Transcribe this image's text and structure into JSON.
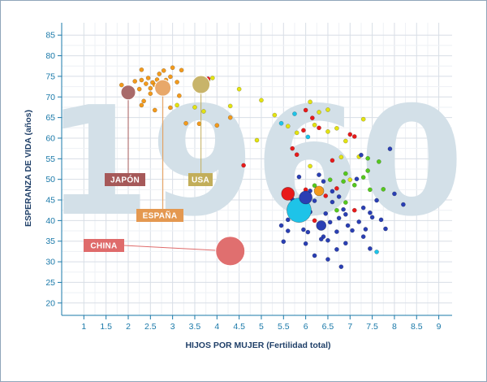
{
  "chart_data": {
    "type": "scatter",
    "title": "",
    "year_label": "1960",
    "xlabel": "HIJOS POR MUJER (Fertilidad total)",
    "ylabel": "ESPERANZA DE VIDA (años)",
    "xlim": [
      0.5,
      9.3
    ],
    "ylim": [
      17,
      88
    ],
    "xticks": [
      1,
      1.5,
      2,
      2.5,
      3,
      3.5,
      4,
      4.5,
      5,
      5.5,
      6,
      6.5,
      7,
      7.5,
      8,
      8.5,
      9
    ],
    "yticks": [
      20,
      25,
      30,
      35,
      40,
      45,
      50,
      55,
      60,
      65,
      70,
      75,
      80,
      85
    ],
    "grid": true,
    "colors": {
      "europe": "#f39a1c",
      "americas": "#e3e312",
      "asia": "#e81a1a",
      "africa": "#2a3fb4",
      "middle_east": "#55c81e",
      "oceania": "#1ec3e8",
      "annotation_line": "#1a79a9"
    },
    "highlighted": [
      {
        "label": "JAPÓN",
        "x": 2.0,
        "y": 71.1,
        "size": 9,
        "color": "#a86a6a",
        "box_color": "#a65959"
      },
      {
        "label": "ESPAÑA",
        "x": 2.78,
        "y": 72.2,
        "size": 10,
        "color": "#e8a86a",
        "box_color": "#e49850"
      },
      {
        "label": "USA",
        "x": 3.64,
        "y": 73.0,
        "size": 11,
        "color": "#c8b46a",
        "box_color": "#c2ae5a"
      },
      {
        "label": "CHINA",
        "x": 4.3,
        "y": 32.6,
        "size": 18,
        "color": "#e06f6f",
        "box_color": "#df6b6b"
      }
    ],
    "series": [
      {
        "region": "europe",
        "points": [
          [
            1.85,
            72.9
          ],
          [
            2.05,
            72.3
          ],
          [
            2.15,
            73.8
          ],
          [
            2.3,
            74.1
          ],
          [
            2.25,
            71.9
          ],
          [
            2.4,
            73.2
          ],
          [
            2.45,
            74.6
          ],
          [
            2.5,
            70.8
          ],
          [
            2.55,
            73.5
          ],
          [
            2.65,
            74.2
          ],
          [
            2.7,
            75.6
          ],
          [
            2.3,
            76.6
          ],
          [
            2.7,
            71.0
          ],
          [
            2.8,
            76.4
          ],
          [
            2.95,
            74.9
          ],
          [
            3.1,
            73.6
          ],
          [
            3.15,
            70.3
          ],
          [
            3.0,
            77.1
          ],
          [
            3.2,
            76.5
          ],
          [
            2.35,
            69.0
          ],
          [
            2.3,
            68.0
          ],
          [
            2.95,
            67.4
          ],
          [
            3.6,
            63.5
          ],
          [
            3.3,
            63.6
          ],
          [
            4.0,
            63.1
          ],
          [
            2.5,
            72.1
          ],
          [
            2.6,
            72.9
          ],
          [
            2.85,
            74.1
          ],
          [
            3.5,
            72.8
          ],
          [
            2.6,
            66.8
          ],
          [
            4.3,
            65.0
          ]
        ]
      },
      {
        "region": "americas",
        "points": [
          [
            3.8,
            74.0
          ],
          [
            3.9,
            74.6
          ],
          [
            4.5,
            71.9
          ],
          [
            5.0,
            69.2
          ],
          [
            6.1,
            68.8
          ],
          [
            5.3,
            65.6
          ],
          [
            6.2,
            63.2
          ],
          [
            6.5,
            66.9
          ],
          [
            6.7,
            62.4
          ],
          [
            6.9,
            59.3
          ],
          [
            7.3,
            64.6
          ],
          [
            6.1,
            53.2
          ],
          [
            6.8,
            55.4
          ],
          [
            7.2,
            55.5
          ],
          [
            6.5,
            61.6
          ],
          [
            7.0,
            49.9
          ],
          [
            5.6,
            62.9
          ],
          [
            4.9,
            59.5
          ],
          [
            5.8,
            61.3
          ],
          [
            6.3,
            66.3
          ],
          [
            3.1,
            68.0
          ],
          [
            3.5,
            67.5
          ],
          [
            3.7,
            66.5
          ],
          [
            4.3,
            67.8
          ]
        ]
      },
      {
        "region": "asia",
        "points": [
          [
            5.7,
            57.5
          ],
          [
            5.95,
            61.9
          ],
          [
            6.3,
            62.5
          ],
          [
            6.6,
            54.6
          ],
          [
            7.1,
            60.4
          ],
          [
            5.8,
            56.0
          ],
          [
            6.15,
            64.9
          ],
          [
            5.55,
            46.5
          ],
          [
            6.0,
            47.5
          ],
          [
            6.2,
            40.0
          ],
          [
            6.45,
            46.0
          ],
          [
            6.7,
            47.8
          ],
          [
            7.1,
            42.5
          ],
          [
            4.6,
            53.4
          ],
          [
            6.0,
            66.8
          ],
          [
            3.8,
            74.4
          ],
          [
            7.0,
            60.9
          ]
        ]
      },
      {
        "region": "africa",
        "points": [
          [
            5.45,
            38.8
          ],
          [
            5.6,
            37.5
          ],
          [
            5.6,
            40.2
          ],
          [
            5.75,
            41.1
          ],
          [
            5.9,
            40.5
          ],
          [
            5.95,
            37.8
          ],
          [
            6.1,
            42.1
          ],
          [
            6.2,
            44.8
          ],
          [
            6.3,
            38.9
          ],
          [
            6.4,
            36.1
          ],
          [
            6.45,
            41.7
          ],
          [
            6.55,
            39.6
          ],
          [
            6.6,
            44.5
          ],
          [
            6.7,
            37.3
          ],
          [
            6.75,
            40.6
          ],
          [
            6.9,
            41.5
          ],
          [
            6.95,
            38.8
          ],
          [
            7.05,
            37.6
          ],
          [
            7.2,
            39.7
          ],
          [
            7.3,
            43.1
          ],
          [
            7.35,
            37.9
          ],
          [
            7.6,
            44.9
          ],
          [
            7.7,
            40.2
          ],
          [
            7.8,
            38.0
          ],
          [
            8.0,
            46.5
          ],
          [
            8.2,
            43.9
          ],
          [
            6.0,
            34.4
          ],
          [
            6.2,
            31.5
          ],
          [
            6.5,
            35.2
          ],
          [
            6.7,
            33.0
          ],
          [
            6.8,
            28.8
          ],
          [
            6.5,
            30.6
          ],
          [
            7.3,
            36.1
          ],
          [
            7.45,
            33.2
          ],
          [
            6.1,
            47.2
          ],
          [
            5.7,
            45.1
          ],
          [
            5.5,
            34.9
          ],
          [
            6.85,
            42.7
          ],
          [
            6.05,
            37.2
          ],
          [
            7.5,
            40.8
          ],
          [
            6.4,
            49.5
          ],
          [
            6.3,
            51.1
          ],
          [
            7.15,
            50.1
          ],
          [
            6.6,
            47.1
          ],
          [
            7.45,
            41.9
          ],
          [
            5.85,
            50.6
          ],
          [
            7.25,
            55.9
          ],
          [
            7.9,
            57.4
          ],
          [
            6.75,
            45.8
          ],
          [
            6.35,
            35.5
          ],
          [
            6.9,
            34.5
          ]
        ]
      },
      {
        "region": "middle_east",
        "points": [
          [
            6.55,
            49.9
          ],
          [
            6.85,
            49.5
          ],
          [
            7.4,
            55.1
          ],
          [
            7.65,
            54.3
          ],
          [
            7.3,
            50.5
          ],
          [
            6.9,
            44.4
          ],
          [
            7.1,
            48.6
          ],
          [
            7.45,
            47.5
          ],
          [
            6.2,
            48.5
          ],
          [
            6.9,
            51.4
          ],
          [
            7.75,
            47.6
          ],
          [
            7.4,
            52.1
          ],
          [
            6.7,
            42.5
          ]
        ]
      },
      {
        "region": "oceania",
        "points": [
          [
            5.9,
            43.0
          ],
          [
            7.6,
            32.4
          ],
          [
            5.45,
            63.6
          ],
          [
            5.75,
            65.9
          ],
          [
            6.05,
            60.3
          ]
        ]
      }
    ],
    "big_points": [
      {
        "region": "oceania",
        "x": 5.85,
        "y": 42.5,
        "size": 15,
        "color": "#1ec3e8"
      },
      {
        "region": "africa",
        "x": 6.0,
        "y": 45.6,
        "size": 8,
        "color": "#2a3fb4"
      },
      {
        "region": "asia",
        "x": 5.6,
        "y": 46.5,
        "size": 8,
        "color": "#e81a1a"
      },
      {
        "region": "africa",
        "x": 6.35,
        "y": 38.8,
        "size": 6,
        "color": "#2a3fb4"
      },
      {
        "region": "europe",
        "x": 6.3,
        "y": 47.2,
        "size": 6,
        "color": "#f39a1c"
      }
    ]
  }
}
